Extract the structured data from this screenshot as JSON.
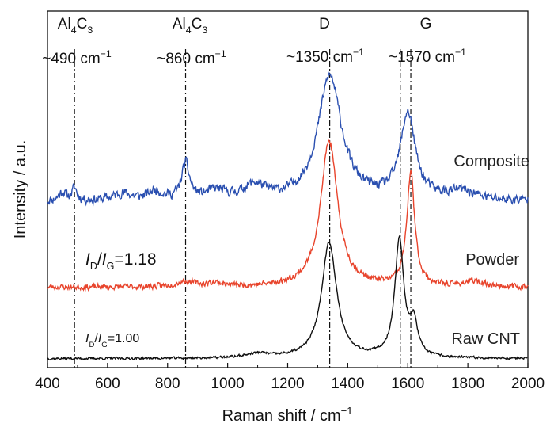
{
  "chart_data": {
    "type": "line",
    "xlabel": "Raman shift / cm",
    "xlabel_sup": "−1",
    "ylabel": "Intensity / a.u.",
    "xlim": [
      400,
      2000
    ],
    "ylim": [
      0,
      10
    ],
    "x_ticks": [
      400,
      600,
      800,
      1000,
      1200,
      1400,
      1600,
      1800,
      2000
    ],
    "grid": false,
    "marker_lines": [
      490,
      860,
      1340,
      1575,
      1610
    ],
    "annotations": [
      {
        "formula": [
          "Al",
          "4",
          "C",
          "3"
        ],
        "wavenumber": "~490 cm",
        "sup": "−1",
        "x": 490
      },
      {
        "formula": [
          "Al",
          "4",
          "C",
          "3"
        ],
        "wavenumber": "~860 cm",
        "sup": "−1",
        "x": 860
      },
      {
        "band": "D",
        "wavenumber": "~1350 cm",
        "sup": "−1",
        "x": 1340
      },
      {
        "band": "G",
        "wavenumber": "~1570 cm",
        "sup": "−1",
        "x": 1590
      }
    ],
    "ratios": [
      {
        "I": "I",
        "D": "D",
        "slash": "/",
        "I2": "I",
        "G": "G",
        "value": "=1.18",
        "color": "#e8442c"
      },
      {
        "I": "I",
        "D": "D",
        "slash": "/",
        "I2": "I",
        "G": "G",
        "value": "=1.00",
        "color": "#111111"
      }
    ],
    "series": [
      {
        "name": "Composite",
        "color": "#2a4fb0",
        "baseline": 4.65,
        "noise": 0.12,
        "seed": 11,
        "peaks": [
          {
            "x": 450,
            "h": 0.25,
            "w": 14
          },
          {
            "x": 490,
            "h": 0.35,
            "w": 10
          },
          {
            "x": 650,
            "h": 0.2,
            "w": 40
          },
          {
            "x": 760,
            "h": 0.25,
            "w": 30
          },
          {
            "x": 860,
            "h": 1.0,
            "w": 16
          },
          {
            "x": 960,
            "h": 0.25,
            "w": 40
          },
          {
            "x": 1090,
            "h": 0.4,
            "w": 45
          },
          {
            "x": 1340,
            "h": 3.5,
            "w": 48
          },
          {
            "x": 1600,
            "h": 2.4,
            "w": 30
          },
          {
            "x": 1780,
            "h": 0.25,
            "w": 60
          }
        ]
      },
      {
        "name": "Powder",
        "color": "#e8442c",
        "baseline": 2.25,
        "noise": 0.07,
        "seed": 23,
        "peaks": [
          {
            "x": 860,
            "h": 0.15,
            "w": 40
          },
          {
            "x": 960,
            "h": 0.1,
            "w": 30
          },
          {
            "x": 1338,
            "h": 4.1,
            "w": 34
          },
          {
            "x": 1610,
            "h": 3.15,
            "w": 16
          },
          {
            "x": 1820,
            "h": 0.15,
            "w": 40
          }
        ]
      },
      {
        "name": "Raw CNT",
        "color": "#111111",
        "baseline": 0.25,
        "noise": 0.03,
        "seed": 37,
        "peaks": [
          {
            "x": 1100,
            "h": 0.12,
            "w": 50
          },
          {
            "x": 1338,
            "h": 3.25,
            "w": 30
          },
          {
            "x": 1572,
            "h": 3.3,
            "w": 18
          },
          {
            "x": 1620,
            "h": 0.9,
            "w": 15
          }
        ]
      }
    ]
  }
}
